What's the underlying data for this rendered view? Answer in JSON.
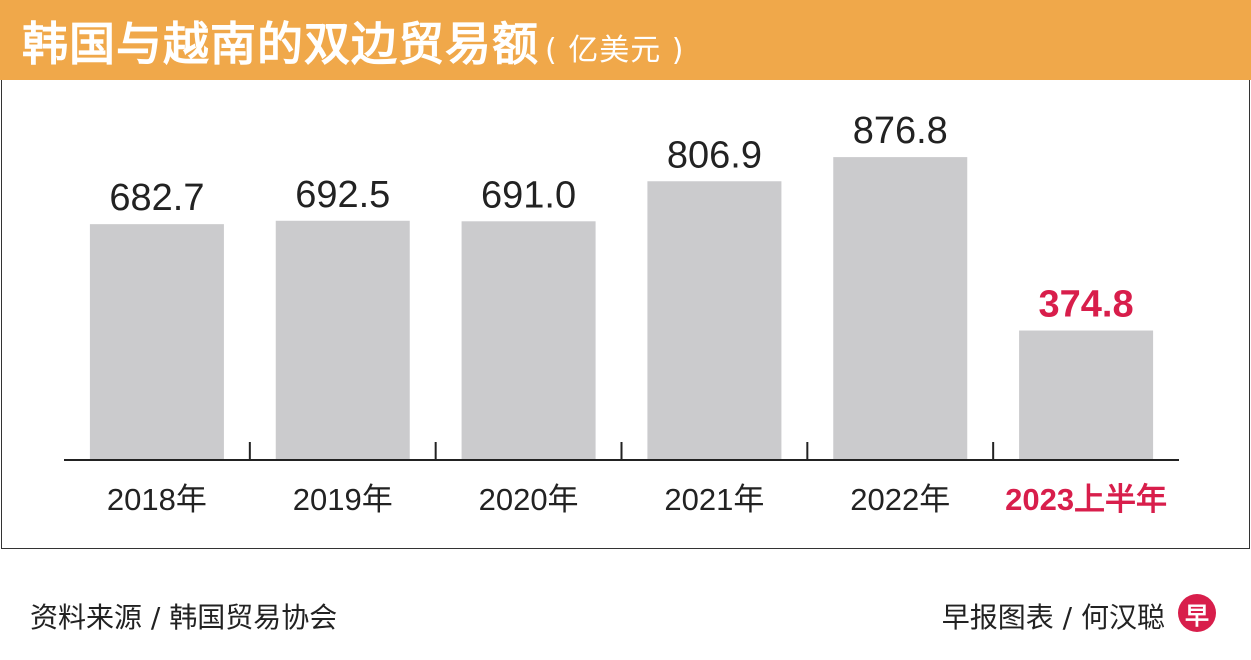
{
  "header": {
    "title": "韩国与越南的双边贸易额",
    "unit": "( 亿美元 )"
  },
  "chart_data": {
    "type": "bar",
    "categories": [
      "2018年",
      "2019年",
      "2020年",
      "2021年",
      "2022年",
      "2023上半年"
    ],
    "values": [
      682.7,
      692.5,
      691.0,
      806.9,
      876.8,
      374.8
    ],
    "value_labels": [
      "682.7",
      "692.5",
      "691.0",
      "806.9",
      "876.8",
      "374.8"
    ],
    "highlight_index": 5,
    "ylim": [
      0,
      1100
    ],
    "grid": false,
    "colors": {
      "bar": "#cbcbcd",
      "highlight_text": "#d81e4b",
      "text": "#222222",
      "title_bg": "#f0a84a"
    }
  },
  "footer": {
    "source": "资料来源 / 韩国贸易协会",
    "credit": "早报图表 / 何汉聪",
    "logo_glyph": "早"
  }
}
